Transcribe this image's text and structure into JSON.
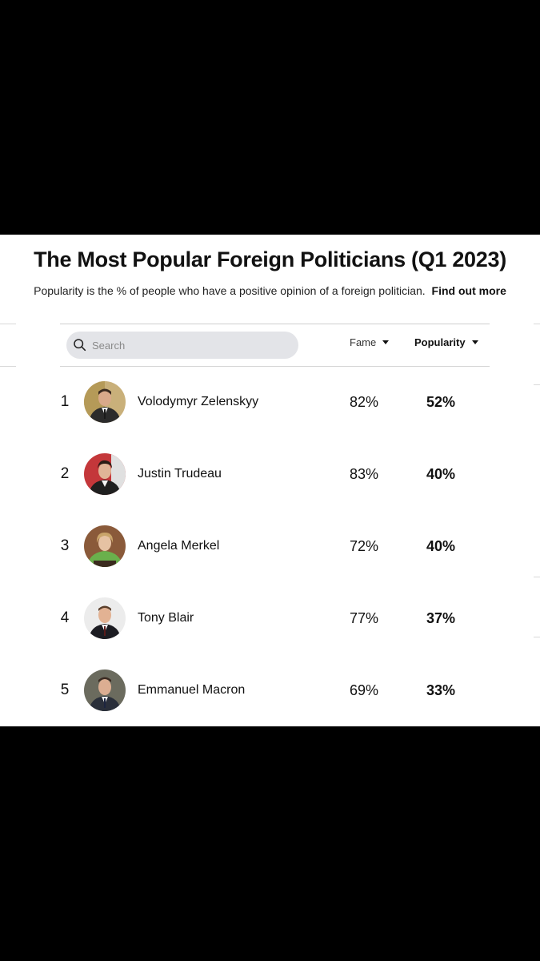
{
  "title": "The Most Popular Foreign Politicians (Q1 2023)",
  "subtitle": {
    "text": "Popularity is the % of people who have a positive opinion of a foreign politician.",
    "link": "Find out more"
  },
  "search": {
    "placeholder": "Search"
  },
  "columns": {
    "fame": "Fame",
    "popularity": "Popularity",
    "sorted_by": "popularity"
  },
  "rows": [
    {
      "rank": "1",
      "name": "Volodymyr Zelenskyy",
      "fame": "82%",
      "popularity": "52%"
    },
    {
      "rank": "2",
      "name": "Justin Trudeau",
      "fame": "83%",
      "popularity": "40%"
    },
    {
      "rank": "3",
      "name": "Angela Merkel",
      "fame": "72%",
      "popularity": "40%"
    },
    {
      "rank": "4",
      "name": "Tony Blair",
      "fame": "77%",
      "popularity": "37%"
    },
    {
      "rank": "5",
      "name": "Emmanuel Macron",
      "fame": "69%",
      "popularity": "33%"
    }
  ],
  "colors": {
    "search_bg": "#e3e4e8",
    "divider": "#d6d6d6",
    "text": "#111111"
  }
}
